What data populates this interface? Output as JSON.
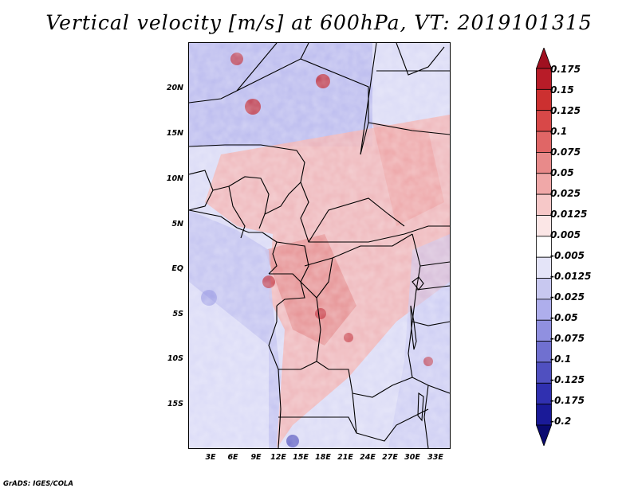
{
  "title": "Vertical velocity [m/s] at 600hPa, VT: 2019101315",
  "footer": "GrADS: IGES/COLA",
  "lat_labels": [
    "20N",
    "15N",
    "10N",
    "5N",
    "EQ",
    "5S",
    "10S",
    "15S"
  ],
  "lon_labels": [
    "3E",
    "6E",
    "9E",
    "12E",
    "15E",
    "18E",
    "21E",
    "24E",
    "27E",
    "30E",
    "33E"
  ],
  "colorbar": {
    "labels": [
      "0.175",
      "0.15",
      "0.125",
      "0.1",
      "0.075",
      "0.05",
      "0.025",
      "0.0125",
      "0.005",
      "-0.005",
      "-0.0125",
      "-0.025",
      "-0.05",
      "-0.075",
      "-0.1",
      "-0.125",
      "-0.175",
      "-0.2"
    ],
    "colors": [
      "#a01020",
      "#b81c28",
      "#cc3030",
      "#d84848",
      "#e06666",
      "#e88a8a",
      "#f0a8a8",
      "#f6c8c8",
      "#fbe6e6",
      "#ffffff",
      "#e4e4f8",
      "#c8c8f0",
      "#aeaeec",
      "#9090e0",
      "#7070d0",
      "#5050c0",
      "#3030b0",
      "#1a1a98",
      "#0a0a70"
    ]
  }
}
